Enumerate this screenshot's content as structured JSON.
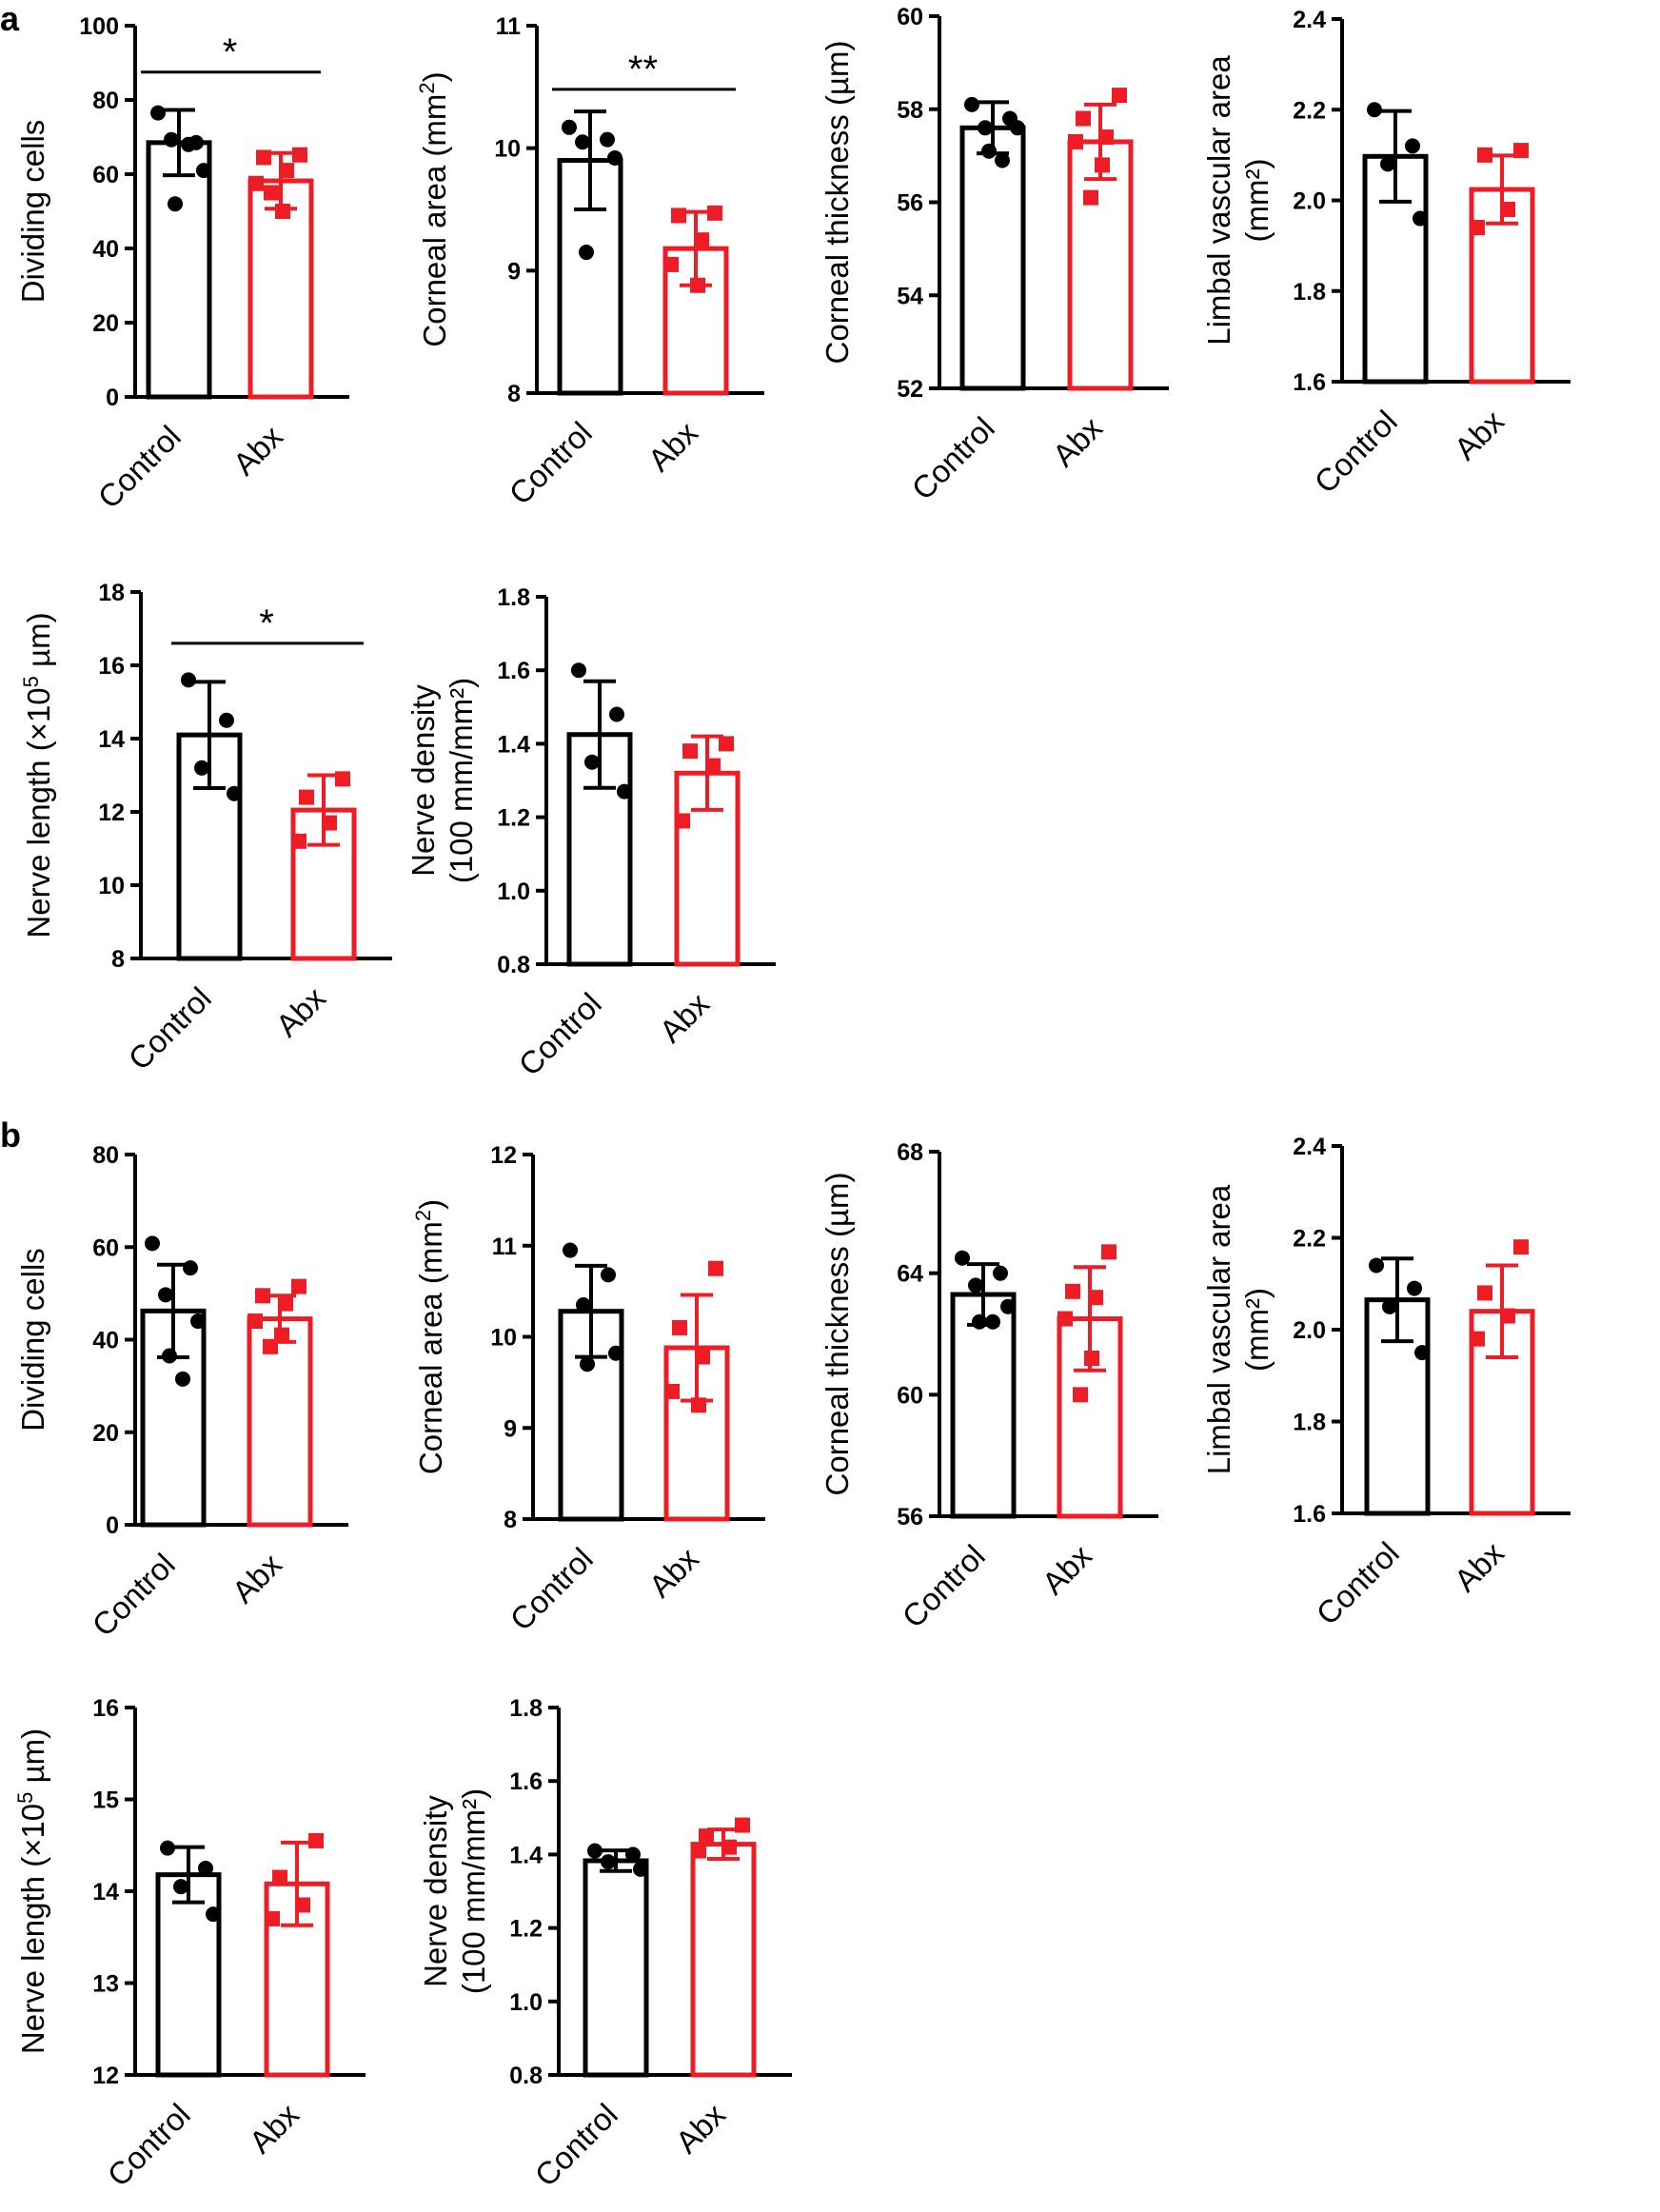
{
  "colors": {
    "control": "#000000",
    "abx": "#ee1c25"
  },
  "panel_labels": [
    "a",
    "b"
  ],
  "chart_data": [
    {
      "id": "a1",
      "panel": "a",
      "type": "bar",
      "categories": [
        "Control",
        "Abx"
      ],
      "ylabel": "Dividing cells",
      "ylabel_sup": "",
      "ylabel_after": "",
      "ylabel2": "",
      "ylim": [
        0,
        100
      ],
      "yticks": [
        "0",
        "20",
        "40",
        "60",
        "80",
        "100"
      ],
      "series": [
        {
          "values": [
            68.5,
            58.2
          ],
          "sd": [
            8.8,
            7.5
          ],
          "marker": "circle",
          "points": [
            [
              76.5,
              68.5,
              69.3,
              61.0,
              52.0,
              68.0
            ],
            [
              65.2,
              64.5,
              61.0,
              57.5,
              50.0,
              55.0
            ]
          ]
        }
      ],
      "significance": [
        {
          "label": "*",
          "y": 87.5
        }
      ]
    },
    {
      "id": "a2",
      "panel": "a",
      "type": "bar",
      "categories": [
        "Control",
        "Abx"
      ],
      "ylabel": "Corneal area (mm",
      "ylabel_sup": "2",
      "ylabel_after": ")",
      "ylabel2": "",
      "ylim": [
        8,
        11
      ],
      "yticks": [
        "8",
        "9",
        "10",
        "11"
      ],
      "series": [
        {
          "values": [
            9.9,
            9.18
          ],
          "sd": [
            0.4,
            0.3
          ],
          "marker": "circle",
          "points": [
            [
              10.17,
              10.07,
              10.05,
              9.92,
              9.15
            ],
            [
              9.47,
              9.45,
              9.25,
              9.05,
              8.88
            ]
          ]
        }
      ],
      "significance": [
        {
          "label": "**",
          "y": 10.48
        }
      ]
    },
    {
      "id": "a3",
      "panel": "a",
      "type": "bar",
      "categories": [
        "Control",
        "Abx"
      ],
      "ylabel": "Corneal thickness (µm)",
      "ylabel_sup": "",
      "ylabel_after": "",
      "ylabel2": "",
      "ylim": [
        52,
        60
      ],
      "yticks": [
        "52",
        "54",
        "56",
        "58",
        "60"
      ],
      "series": [
        {
          "values": [
            57.6,
            57.3
          ],
          "sd": [
            0.55,
            0.8
          ],
          "marker": "circle",
          "points": [
            [
              58.1,
              57.8,
              57.6,
              57.6,
              57.1,
              56.9
            ],
            [
              58.3,
              57.8,
              57.4,
              57.3,
              56.8,
              56.1
            ]
          ]
        }
      ],
      "significance": []
    },
    {
      "id": "a4",
      "panel": "a",
      "type": "bar",
      "categories": [
        "Control",
        "Abx"
      ],
      "ylabel": "Limbal vascular area",
      "ylabel_sup": "",
      "ylabel_after": "",
      "ylabel2": "(mm²)",
      "ylim": [
        1.6,
        2.4
      ],
      "yticks": [
        "1.6",
        "1.8",
        "2.0",
        "2.2",
        "2.4"
      ],
      "series": [
        {
          "values": [
            2.097,
            2.024
          ],
          "sd": [
            0.1,
            0.075
          ],
          "marker": "circle",
          "points": [
            [
              2.2,
              2.12,
              2.08,
              1.96
            ],
            [
              2.11,
              2.1,
              1.98,
              1.94
            ]
          ]
        }
      ],
      "significance": []
    },
    {
      "id": "a5",
      "panel": "a",
      "type": "bar",
      "categories": [
        "Control",
        "Abx"
      ],
      "ylabel": "Nerve length (×10",
      "ylabel_sup": "5",
      "ylabel_after": " µm)",
      "ylabel2": "",
      "ylim": [
        8,
        18
      ],
      "yticks": [
        "8",
        "10",
        "12",
        "14",
        "16",
        "18"
      ],
      "series": [
        {
          "values": [
            14.1,
            12.05
          ],
          "sd": [
            1.45,
            0.95
          ],
          "marker": "circle",
          "points": [
            [
              15.6,
              14.5,
              13.2,
              12.5
            ],
            [
              12.9,
              12.4,
              11.7,
              11.2
            ]
          ]
        }
      ],
      "significance": [
        {
          "label": "*",
          "y": 16.6
        }
      ]
    },
    {
      "id": "a6",
      "panel": "a",
      "type": "bar",
      "categories": [
        "Control",
        "Abx"
      ],
      "ylabel": "Nerve density",
      "ylabel_sup": "",
      "ylabel_after": "",
      "ylabel2": "(100 mm/mm²)",
      "ylim": [
        0.8,
        1.8
      ],
      "yticks": [
        "0.8",
        "1.0",
        "1.2",
        "1.4",
        "1.6",
        "1.8"
      ],
      "series": [
        {
          "values": [
            1.425,
            1.32
          ],
          "sd": [
            0.145,
            0.1
          ],
          "marker": "circle",
          "points": [
            [
              1.6,
              1.48,
              1.35,
              1.27
            ],
            [
              1.4,
              1.38,
              1.34,
              1.19
            ]
          ]
        }
      ],
      "significance": []
    },
    {
      "id": "b1",
      "panel": "b",
      "type": "bar",
      "categories": [
        "Control",
        "Abx"
      ],
      "ylabel": "Dividing cells",
      "ylabel_sup": "",
      "ylabel_after": "",
      "ylabel2": "",
      "ylim": [
        0,
        80
      ],
      "yticks": [
        "0",
        "20",
        "40",
        "60",
        "80"
      ],
      "series": [
        {
          "values": [
            46.2,
            44.5
          ],
          "sd": [
            10,
            5
          ],
          "marker": "circle",
          "points": [
            [
              60.8,
              55.5,
              49.7,
              44.0,
              36.5,
              31.5
            ],
            [
              51.5,
              49.5,
              47.8,
              44.0,
              41.0,
              38.5
            ]
          ]
        }
      ],
      "significance": []
    },
    {
      "id": "b2",
      "panel": "b",
      "type": "bar",
      "categories": [
        "Control",
        "Abx"
      ],
      "ylabel": "Corneal area (mm",
      "ylabel_sup": "2",
      "ylabel_after": ")",
      "ylabel2": "",
      "ylim": [
        8,
        12
      ],
      "yticks": [
        "8",
        "9",
        "10",
        "11",
        "12"
      ],
      "series": [
        {
          "values": [
            10.28,
            9.88
          ],
          "sd": [
            0.5,
            0.58
          ],
          "marker": "circle",
          "points": [
            [
              10.95,
              10.68,
              10.35,
              9.82,
              9.7
            ],
            [
              10.75,
              10.1,
              9.78,
              9.4,
              9.25
            ]
          ]
        }
      ],
      "significance": []
    },
    {
      "id": "b3",
      "panel": "b",
      "type": "bar",
      "categories": [
        "Control",
        "Abx"
      ],
      "ylabel": "Corneal thickness (µm)",
      "ylabel_sup": "",
      "ylabel_after": "",
      "ylabel2": "",
      "ylim": [
        56,
        68
      ],
      "yticks": [
        "56",
        "60",
        "64",
        "68"
      ],
      "series": [
        {
          "values": [
            63.3,
            62.5
          ],
          "sd": [
            1.0,
            1.7
          ],
          "marker": "circle",
          "points": [
            [
              64.5,
              64.0,
              63.6,
              62.9,
              62.4,
              62.4
            ],
            [
              64.7,
              63.4,
              63.2,
              62.5,
              61.2,
              60.0
            ]
          ]
        }
      ],
      "significance": []
    },
    {
      "id": "b4",
      "panel": "b",
      "type": "bar",
      "categories": [
        "Control",
        "Abx"
      ],
      "ylabel": "Limbal vascular area",
      "ylabel_sup": "",
      "ylabel_after": "",
      "ylabel2": "(mm²)",
      "ylim": [
        1.6,
        2.4
      ],
      "yticks": [
        "1.6",
        "1.8",
        "2.0",
        "2.2",
        "2.4"
      ],
      "series": [
        {
          "values": [
            2.065,
            2.04
          ],
          "sd": [
            0.09,
            0.1
          ],
          "marker": "circle",
          "points": [
            [
              2.14,
              2.09,
              2.05,
              1.95
            ],
            [
              2.18,
              2.08,
              2.03,
              1.98
            ]
          ]
        }
      ],
      "significance": []
    },
    {
      "id": "b5",
      "panel": "b",
      "type": "bar",
      "categories": [
        "Control",
        "Abx"
      ],
      "ylabel": "Nerve length (×10",
      "ylabel_sup": "5",
      "ylabel_after": " µm)",
      "ylabel2": "",
      "ylim": [
        12,
        16
      ],
      "yticks": [
        "12",
        "13",
        "14",
        "15",
        "16"
      ],
      "series": [
        {
          "values": [
            14.18,
            14.08
          ],
          "sd": [
            0.3,
            0.45
          ],
          "marker": "circle",
          "points": [
            [
              14.47,
              14.25,
              14.05,
              13.75
            ],
            [
              14.55,
              14.15,
              13.85,
              13.7
            ]
          ]
        }
      ],
      "significance": []
    },
    {
      "id": "b6",
      "panel": "b",
      "type": "bar",
      "categories": [
        "Control",
        "Abx"
      ],
      "ylabel": "Nerve density",
      "ylabel_sup": "",
      "ylabel_after": "",
      "ylabel2": "(100 mm/mm²)",
      "ylim": [
        0.8,
        1.8
      ],
      "yticks": [
        "0.8",
        "1.0",
        "1.2",
        "1.4",
        "1.6",
        "1.8"
      ],
      "series": [
        {
          "values": [
            1.383,
            1.428
          ],
          "sd": [
            0.028,
            0.04
          ],
          "marker": "circle",
          "points": [
            [
              1.41,
              1.4,
              1.38,
              1.36
            ],
            [
              1.48,
              1.45,
              1.42,
              1.41
            ]
          ]
        }
      ],
      "significance": []
    }
  ]
}
